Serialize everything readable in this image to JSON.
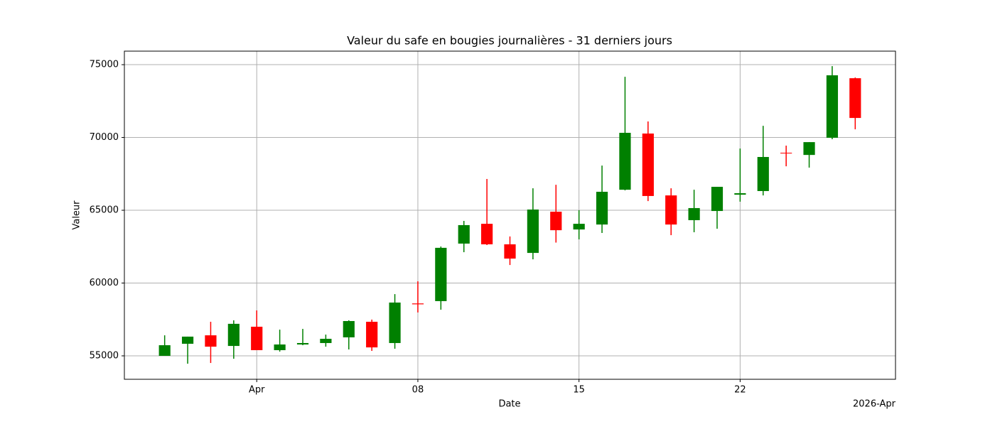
{
  "chart_data": {
    "type": "candlestick",
    "title": "Valeur du safe en bougies journalières - 31 derniers jours",
    "xlabel": "Date",
    "ylabel": "Valeur",
    "x_offset_label": "2026-Apr",
    "x": [
      "2026-03-28",
      "2026-03-29",
      "2026-03-30",
      "2026-03-31",
      "2026-04-01",
      "2026-04-02",
      "2026-04-03",
      "2026-04-04",
      "2026-04-05",
      "2026-04-06",
      "2026-04-07",
      "2026-04-08",
      "2026-04-09",
      "2026-04-10",
      "2026-04-11",
      "2026-04-12",
      "2026-04-13",
      "2026-04-14",
      "2026-04-15",
      "2026-04-16",
      "2026-04-17",
      "2026-04-18",
      "2026-04-19",
      "2026-04-20",
      "2026-04-21",
      "2026-04-22",
      "2026-04-23",
      "2026-04-24",
      "2026-04-25",
      "2026-04-26",
      "2026-04-27"
    ],
    "open": [
      55000,
      55830,
      56410,
      55680,
      57000,
      55390,
      55780,
      55880,
      56270,
      57340,
      55880,
      58600,
      58760,
      62710,
      64070,
      62660,
      62070,
      64900,
      63680,
      64020,
      66410,
      70270,
      66020,
      64320,
      64950,
      66070,
      66320,
      68950,
      68800,
      69980,
      74070
    ],
    "high": [
      56410,
      56320,
      57340,
      57440,
      58120,
      56800,
      56850,
      56460,
      57440,
      57490,
      59240,
      60120,
      62510,
      64270,
      67150,
      63200,
      66510,
      66750,
      65000,
      68070,
      74170,
      71100,
      66510,
      66410,
      66610,
      69240,
      70800,
      69440,
      69680,
      74900,
      74120
    ],
    "low": [
      55000,
      54460,
      54510,
      54800,
      55390,
      55290,
      55730,
      55630,
      55440,
      55340,
      55490,
      57980,
      58170,
      62120,
      62610,
      61240,
      61630,
      62780,
      63000,
      63440,
      66370,
      65630,
      63290,
      63490,
      63730,
      65590,
      66020,
      68020,
      67930,
      69880,
      70560
    ],
    "close": [
      55730,
      56320,
      55630,
      57200,
      55390,
      55780,
      55880,
      56170,
      57390,
      55580,
      58660,
      58540,
      62420,
      63980,
      62660,
      61680,
      65050,
      63630,
      64070,
      66270,
      70320,
      65980,
      64020,
      65150,
      66610,
      66170,
      68660,
      68900,
      69680,
      74270,
      71340
    ],
    "up_color": "#008000",
    "down_color": "#ff0000",
    "xlim": [
      "2026-03-26T06:00",
      "2026-04-28T18:00"
    ],
    "xticks": [
      {
        "value": "2026-04-01",
        "label": "Apr"
      },
      {
        "value": "2026-04-08",
        "label": "08"
      },
      {
        "value": "2026-04-15",
        "label": "15"
      },
      {
        "value": "2026-04-22",
        "label": "22"
      }
    ],
    "ylim": [
      53390,
      75930
    ],
    "yticks": [
      55000,
      60000,
      65000,
      70000,
      75000
    ],
    "grid": true
  }
}
